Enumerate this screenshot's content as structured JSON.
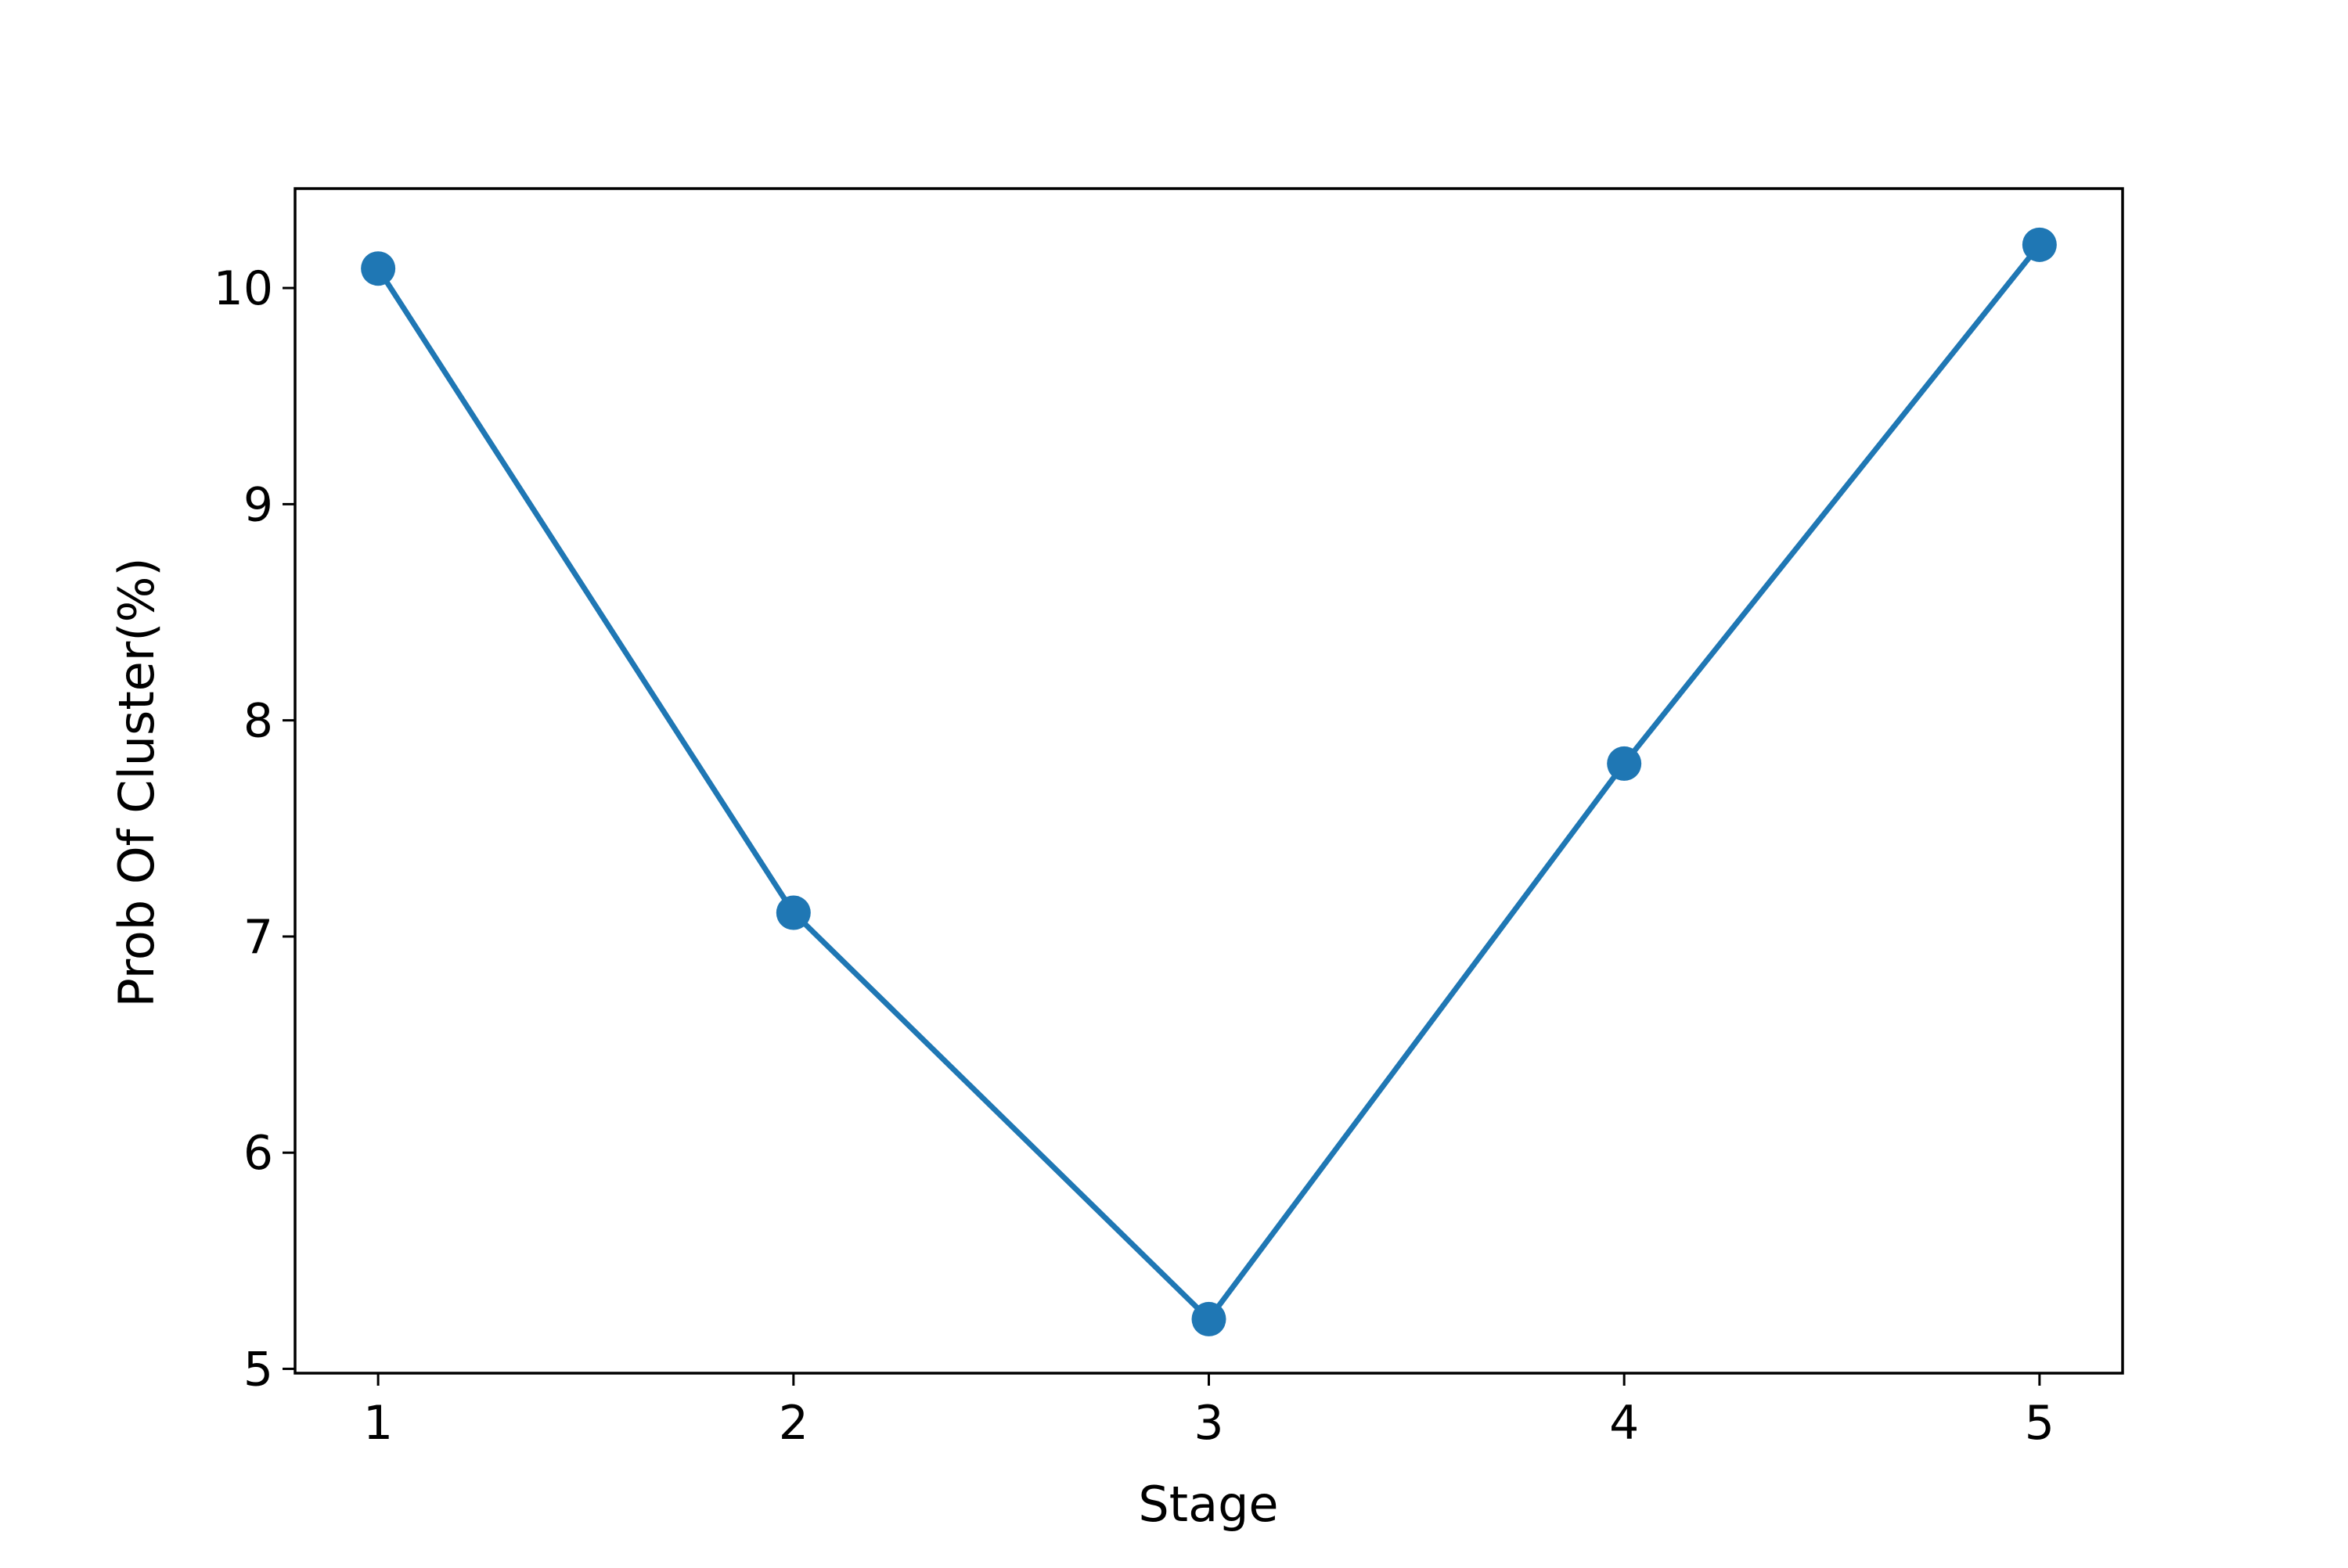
{
  "chart_data": {
    "type": "line",
    "title": "",
    "xlabel": "Stage",
    "ylabel": "Prob Of Cluster(%)",
    "x": [
      1,
      2,
      3,
      4,
      5
    ],
    "series": [
      {
        "values": [
          10.09,
          7.11,
          5.23,
          7.8,
          10.2
        ],
        "color": "#1f77b4",
        "marker": "circle"
      }
    ],
    "xlim": [
      0.8,
      5.2
    ],
    "ylim": [
      4.98,
      10.46
    ],
    "xticks": [
      1,
      2,
      3,
      4,
      5
    ],
    "xtick_labels": [
      "1",
      "2",
      "3",
      "4",
      "5"
    ],
    "yticks": [
      5,
      6,
      7,
      8,
      9,
      10
    ],
    "ytick_labels": [
      "5",
      "6",
      "7",
      "8",
      "9",
      "10"
    ],
    "grid": false,
    "legend": "none"
  }
}
